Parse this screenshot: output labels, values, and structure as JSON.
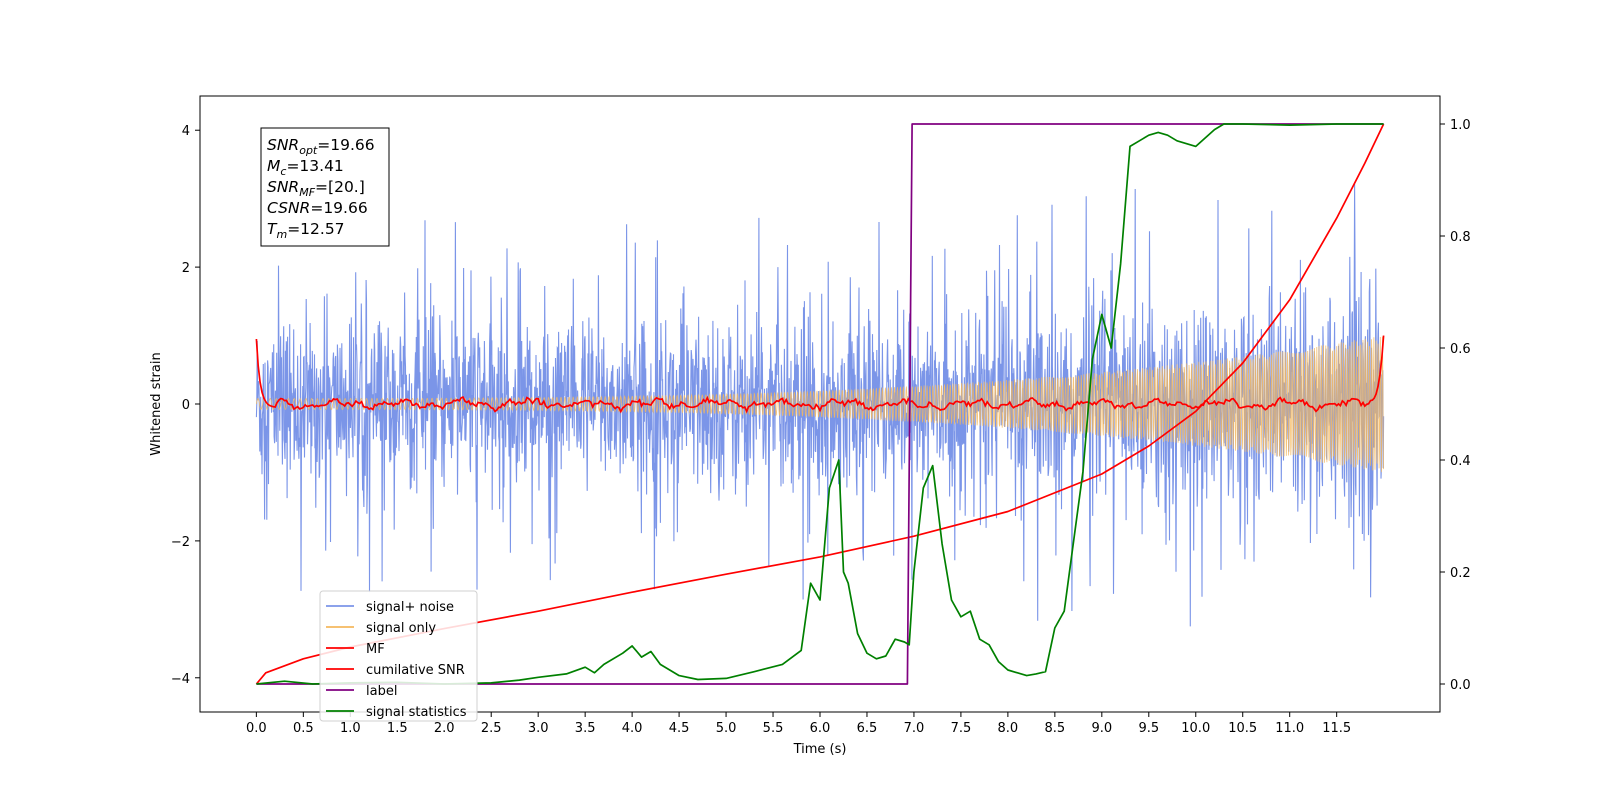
{
  "chart_data": {
    "type": "line",
    "xlabel": "Time (s)",
    "ylabel": "Whitened strain",
    "xlim": [
      -0.6,
      12.6
    ],
    "ylim": [
      -4.5,
      4.5
    ],
    "y2lim": [
      -0.05,
      1.05
    ],
    "grid": false,
    "legend_position": "lower-left",
    "x_ticks": [
      "0.0",
      "0.5",
      "1.0",
      "1.5",
      "2.0",
      "2.5",
      "3.0",
      "3.5",
      "4.0",
      "4.5",
      "5.0",
      "5.5",
      "6.0",
      "6.5",
      "7.0",
      "7.5",
      "8.0",
      "8.5",
      "9.0",
      "9.5",
      "10.0",
      "10.5",
      "11.0",
      "11.5"
    ],
    "y_ticks": [
      "−4",
      "−2",
      "0",
      "2",
      "4"
    ],
    "y2_ticks": [
      "0.0",
      "0.2",
      "0.4",
      "0.6",
      "0.8",
      "1.0"
    ],
    "annotation": [
      {
        "sym": "SNR",
        "sub": "opt",
        "val": "=19.66"
      },
      {
        "sym": "M",
        "sub": "c",
        "val": "=13.41"
      },
      {
        "sym": "SNR",
        "sub": "MF",
        "val": "=[20.]"
      },
      {
        "sym": "CSNR",
        "sub": "",
        "val": "=19.66"
      },
      {
        "sym": "T",
        "sub": "m",
        "val": "=12.57"
      }
    ],
    "series": [
      {
        "name": "signal+ noise",
        "color": "#7b95e8",
        "axis": "left",
        "kind": "noise",
        "band_rms": 0.65,
        "spike_max": 2.8,
        "t_range": [
          0,
          12
        ]
      },
      {
        "name": "signal only",
        "color": "#f5b85e",
        "axis": "left",
        "kind": "chirp",
        "amp_start": 0.08,
        "amp_end": 1.0,
        "t_range": [
          0,
          12
        ]
      },
      {
        "name": "MF",
        "color": "#ff0000",
        "axis": "left",
        "kind": "matched-filter",
        "x": [
          0,
          0.05,
          0.1,
          0.2,
          11.8,
          11.9,
          11.95,
          12.0
        ],
        "y": [
          1.0,
          0.6,
          0.0,
          -0.05,
          0.05,
          0.1,
          0.15,
          1.0
        ]
      },
      {
        "name": "cumilative SNR",
        "color": "#ff0000",
        "axis": "right",
        "x": [
          0,
          0.1,
          0.5,
          1.0,
          2.0,
          3.0,
          4.0,
          5.0,
          6.0,
          7.0,
          8.0,
          9.0,
          9.5,
          10.0,
          10.5,
          11.0,
          11.5,
          11.8,
          12.0
        ],
        "y": [
          0.0,
          0.02,
          0.045,
          0.066,
          0.099,
          0.13,
          0.164,
          0.196,
          0.227,
          0.264,
          0.308,
          0.375,
          0.425,
          0.487,
          0.573,
          0.686,
          0.832,
          0.93,
          1.0
        ]
      },
      {
        "name": "label",
        "color": "#800080",
        "axis": "right",
        "x": [
          0,
          6.93,
          6.98,
          12.0
        ],
        "y": [
          0,
          0,
          1,
          1
        ]
      },
      {
        "name": "signal statistics",
        "color": "#008000",
        "axis": "right",
        "x": [
          0,
          0.3,
          0.6,
          1.0,
          1.5,
          2.0,
          2.5,
          2.8,
          3.0,
          3.3,
          3.5,
          3.6,
          3.7,
          3.9,
          4.0,
          4.1,
          4.2,
          4.3,
          4.4,
          4.5,
          4.7,
          5.0,
          5.3,
          5.6,
          5.8,
          5.9,
          6.0,
          6.1,
          6.2,
          6.25,
          6.3,
          6.4,
          6.5,
          6.6,
          6.7,
          6.8,
          6.9,
          6.95,
          7.0,
          7.1,
          7.2,
          7.3,
          7.4,
          7.5,
          7.6,
          7.7,
          7.8,
          7.9,
          8.0,
          8.2,
          8.3,
          8.4,
          8.5,
          8.6,
          8.8,
          8.9,
          9.0,
          9.1,
          9.2,
          9.3,
          9.4,
          9.5,
          9.6,
          9.7,
          9.8,
          10.0,
          10.2,
          10.3,
          10.5,
          11.0,
          11.5,
          12.0
        ],
        "y": [
          0.0,
          0.005,
          0.0,
          0.002,
          0.003,
          0.0,
          0.002,
          0.007,
          0.012,
          0.018,
          0.03,
          0.02,
          0.035,
          0.055,
          0.068,
          0.048,
          0.058,
          0.035,
          0.025,
          0.015,
          0.008,
          0.01,
          0.022,
          0.035,
          0.06,
          0.18,
          0.15,
          0.35,
          0.4,
          0.2,
          0.18,
          0.09,
          0.055,
          0.045,
          0.05,
          0.08,
          0.075,
          0.07,
          0.2,
          0.35,
          0.39,
          0.25,
          0.15,
          0.12,
          0.13,
          0.08,
          0.07,
          0.04,
          0.025,
          0.015,
          0.018,
          0.022,
          0.1,
          0.13,
          0.38,
          0.58,
          0.66,
          0.6,
          0.75,
          0.96,
          0.97,
          0.98,
          0.985,
          0.98,
          0.97,
          0.96,
          0.99,
          1.0,
          1.0,
          0.998,
          1.0,
          1.0
        ]
      }
    ]
  }
}
